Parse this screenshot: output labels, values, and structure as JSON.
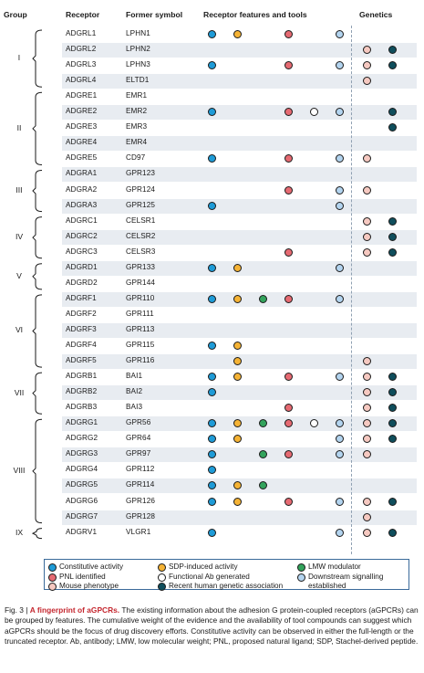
{
  "headers": {
    "group": "Group",
    "receptor": "Receptor",
    "former": "Former symbol",
    "features": "Receptor features and tools",
    "genetics": "Genetics"
  },
  "colors": {
    "constitutive": "#1e9bd7",
    "sdp": "#f5b335",
    "lmw": "#33a35c",
    "pnl": "#e66a72",
    "ab": "#ffffff",
    "downstream": "#b3d4ef",
    "mouse": "#f6c9c1",
    "human": "#0f4e5c"
  },
  "groups": [
    {
      "label": "I",
      "start": 0,
      "end": 3
    },
    {
      "label": "II",
      "start": 4,
      "end": 8
    },
    {
      "label": "III",
      "start": 9,
      "end": 11
    },
    {
      "label": "IV",
      "start": 12,
      "end": 14
    },
    {
      "label": "V",
      "start": 15,
      "end": 16
    },
    {
      "label": "VI",
      "start": 17,
      "end": 21
    },
    {
      "label": "VII",
      "start": 22,
      "end": 24
    },
    {
      "label": "VIII",
      "start": 25,
      "end": 31
    },
    {
      "label": "IX",
      "start": 32,
      "end": 32
    }
  ],
  "rows": [
    {
      "receptor": "ADGRL1",
      "former": "LPHN1",
      "features": [
        "constitutive",
        "sdp",
        "pnl",
        "downstream"
      ],
      "genetics": []
    },
    {
      "receptor": "ADGRL2",
      "former": "LPHN2",
      "features": [],
      "genetics": [
        "mouse",
        "human"
      ]
    },
    {
      "receptor": "ADGRL3",
      "former": "LPHN3",
      "features": [
        "constitutive",
        "pnl",
        "downstream"
      ],
      "genetics": [
        "mouse",
        "human"
      ]
    },
    {
      "receptor": "ADGRL4",
      "former": "ELTD1",
      "features": [],
      "genetics": [
        "mouse"
      ]
    },
    {
      "receptor": "ADGRE1",
      "former": "EMR1",
      "features": [],
      "genetics": []
    },
    {
      "receptor": "ADGRE2",
      "former": "EMR2",
      "features": [
        "constitutive",
        "pnl",
        "ab",
        "downstream"
      ],
      "genetics": [
        "human"
      ]
    },
    {
      "receptor": "ADGRE3",
      "former": "EMR3",
      "features": [],
      "genetics": [
        "human"
      ]
    },
    {
      "receptor": "ADGRE4",
      "former": "EMR4",
      "features": [],
      "genetics": []
    },
    {
      "receptor": "ADGRE5",
      "former": "CD97",
      "features": [
        "constitutive",
        "pnl",
        "downstream"
      ],
      "genetics": [
        "mouse"
      ]
    },
    {
      "receptor": "ADGRA1",
      "former": "GPR123",
      "features": [],
      "genetics": []
    },
    {
      "receptor": "ADGRA2",
      "former": "GPR124",
      "features": [
        "pnl",
        "downstream"
      ],
      "genetics": [
        "mouse"
      ]
    },
    {
      "receptor": "ADGRA3",
      "former": "GPR125",
      "features": [
        "constitutive",
        "downstream"
      ],
      "genetics": []
    },
    {
      "receptor": "ADGRC1",
      "former": "CELSR1",
      "features": [],
      "genetics": [
        "mouse",
        "human"
      ]
    },
    {
      "receptor": "ADGRC2",
      "former": "CELSR2",
      "features": [],
      "genetics": [
        "mouse",
        "human"
      ]
    },
    {
      "receptor": "ADGRC3",
      "former": "CELSR3",
      "features": [
        "pnl"
      ],
      "genetics": [
        "mouse",
        "human"
      ]
    },
    {
      "receptor": "ADGRD1",
      "former": "GPR133",
      "features": [
        "constitutive",
        "sdp",
        "downstream"
      ],
      "genetics": []
    },
    {
      "receptor": "ADGRD2",
      "former": "GPR144",
      "features": [],
      "genetics": []
    },
    {
      "receptor": "ADGRF1",
      "former": "GPR110",
      "features": [
        "constitutive",
        "sdp",
        "lmw",
        "pnl",
        "downstream"
      ],
      "genetics": []
    },
    {
      "receptor": "ADGRF2",
      "former": "GPR111",
      "features": [],
      "genetics": []
    },
    {
      "receptor": "ADGRF3",
      "former": "GPR113",
      "features": [],
      "genetics": []
    },
    {
      "receptor": "ADGRF4",
      "former": "GPR115",
      "features": [
        "constitutive",
        "sdp"
      ],
      "genetics": []
    },
    {
      "receptor": "ADGRF5",
      "former": "GPR116",
      "features": [
        "sdp"
      ],
      "genetics": [
        "mouse"
      ]
    },
    {
      "receptor": "ADGRB1",
      "former": "BAI1",
      "features": [
        "constitutive",
        "sdp",
        "pnl",
        "downstream"
      ],
      "genetics": [
        "mouse",
        "human"
      ]
    },
    {
      "receptor": "ADGRB2",
      "former": "BAI2",
      "features": [
        "constitutive"
      ],
      "genetics": [
        "mouse",
        "human"
      ]
    },
    {
      "receptor": "ADGRB3",
      "former": "BAI3",
      "features": [
        "pnl"
      ],
      "genetics": [
        "mouse",
        "human"
      ]
    },
    {
      "receptor": "ADGRG1",
      "former": "GPR56",
      "features": [
        "constitutive",
        "sdp",
        "lmw",
        "pnl",
        "ab",
        "downstream"
      ],
      "genetics": [
        "mouse",
        "human"
      ]
    },
    {
      "receptor": "ADGRG2",
      "former": "GPR64",
      "features": [
        "constitutive",
        "sdp",
        "downstream"
      ],
      "genetics": [
        "mouse",
        "human"
      ]
    },
    {
      "receptor": "ADGRG3",
      "former": "GPR97",
      "features": [
        "constitutive",
        "lmw",
        "pnl",
        "downstream"
      ],
      "genetics": [
        "mouse"
      ]
    },
    {
      "receptor": "ADGRG4",
      "former": "GPR112",
      "features": [
        "constitutive"
      ],
      "genetics": []
    },
    {
      "receptor": "ADGRG5",
      "former": "GPR114",
      "features": [
        "constitutive",
        "sdp",
        "lmw"
      ],
      "genetics": []
    },
    {
      "receptor": "ADGRG6",
      "former": "GPR126",
      "features": [
        "constitutive",
        "sdp",
        "pnl",
        "downstream"
      ],
      "genetics": [
        "mouse",
        "human"
      ]
    },
    {
      "receptor": "ADGRG7",
      "former": "GPR128",
      "features": [],
      "genetics": [
        "mouse"
      ]
    },
    {
      "receptor": "ADGRV1",
      "former": "VLGR1",
      "features": [
        "constitutive",
        "downstream"
      ],
      "genetics": [
        "mouse",
        "human"
      ]
    }
  ],
  "legend": [
    {
      "key": "constitutive",
      "label": "Constitutive activity"
    },
    {
      "key": "sdp",
      "label": "SDP-induced activity"
    },
    {
      "key": "lmw",
      "label": "LMW modulator"
    },
    {
      "key": "pnl",
      "label": "PNL identified"
    },
    {
      "key": "ab",
      "label": "Functional Ab generated"
    },
    {
      "key": "downstream",
      "label": "Downstream signalling established"
    },
    {
      "key": "mouse",
      "label": "Mouse phenotype"
    },
    {
      "key": "human",
      "label": "Recent human genetic association"
    }
  ],
  "caption": {
    "fig": "Fig. 3 |",
    "title": "A fingerprint of aGPCRs.",
    "body": "The existing information about the adhesion G protein-coupled receptors (aGPCRs) can be grouped by features. The cumulative weight of the evidence and the availability of tool compounds can suggest which aGPCRs should be the focus of drug discovery efforts. Constitutive activity can be observed in either the full-length or the truncated receptor. Ab, antibody; LMW, low molecular weight; PNL, proposed natural ligand; SDP, Stachel-derived peptide."
  }
}
